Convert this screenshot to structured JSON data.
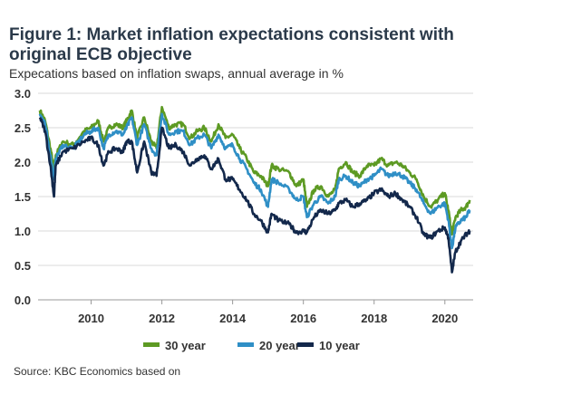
{
  "title": "Figure 1: Market inflation expectations consistent with original ECB objective",
  "subtitle": "Expecations based on inflation swaps, annual average in %",
  "source": "Source: KBC Economics based on",
  "chart_data": {
    "type": "line",
    "ylim": [
      0.0,
      3.0
    ],
    "yticks": [
      "0.0",
      "0.5",
      "1.0",
      "1.5",
      "2.0",
      "2.5",
      "3.0"
    ],
    "xlim": [
      2008.5,
      2020.8
    ],
    "xticks": [
      "2010",
      "2012",
      "2014",
      "2016",
      "2018",
      "2020"
    ],
    "grid": "horizontal",
    "legend_position": "bottom",
    "series": [
      {
        "name": "30 year",
        "color": "#5d9a23",
        "x": [
          2008.55,
          2008.7,
          2008.85,
          2008.95,
          2009.0,
          2009.2,
          2009.5,
          2009.8,
          2010.0,
          2010.2,
          2010.35,
          2010.5,
          2010.7,
          2010.9,
          2011.0,
          2011.15,
          2011.3,
          2011.5,
          2011.7,
          2011.85,
          2012.0,
          2012.2,
          2012.4,
          2012.6,
          2012.8,
          2013.0,
          2013.2,
          2013.4,
          2013.6,
          2013.8,
          2014.0,
          2014.2,
          2014.4,
          2014.6,
          2014.8,
          2015.0,
          2015.1,
          2015.3,
          2015.6,
          2015.8,
          2016.0,
          2016.1,
          2016.3,
          2016.5,
          2016.7,
          2016.9,
          2017.0,
          2017.2,
          2017.4,
          2017.6,
          2017.8,
          2018.0,
          2018.2,
          2018.4,
          2018.6,
          2018.8,
          2019.0,
          2019.2,
          2019.4,
          2019.6,
          2019.8,
          2020.0,
          2020.1,
          2020.2,
          2020.3,
          2020.45,
          2020.6,
          2020.7
        ],
        "y": [
          2.75,
          2.6,
          2.2,
          1.9,
          2.1,
          2.3,
          2.25,
          2.45,
          2.5,
          2.6,
          2.3,
          2.5,
          2.55,
          2.5,
          2.6,
          2.75,
          2.35,
          2.65,
          2.3,
          2.2,
          2.8,
          2.5,
          2.55,
          2.55,
          2.35,
          2.45,
          2.5,
          2.3,
          2.55,
          2.35,
          2.4,
          2.2,
          2.05,
          1.85,
          1.8,
          1.65,
          1.95,
          1.9,
          1.85,
          1.65,
          1.75,
          1.35,
          1.6,
          1.65,
          1.5,
          1.6,
          1.9,
          2.0,
          1.85,
          1.8,
          1.95,
          1.95,
          2.05,
          1.95,
          2.0,
          1.95,
          1.85,
          1.75,
          1.5,
          1.35,
          1.45,
          1.55,
          1.3,
          0.95,
          1.2,
          1.3,
          1.35,
          1.45
        ]
      },
      {
        "name": "20 year",
        "color": "#2f8fc6",
        "x": [
          2008.55,
          2008.7,
          2008.85,
          2008.95,
          2009.0,
          2009.2,
          2009.5,
          2009.8,
          2010.0,
          2010.2,
          2010.35,
          2010.5,
          2010.7,
          2010.9,
          2011.0,
          2011.15,
          2011.3,
          2011.5,
          2011.7,
          2011.85,
          2012.0,
          2012.2,
          2012.4,
          2012.6,
          2012.8,
          2013.0,
          2013.2,
          2013.4,
          2013.6,
          2013.8,
          2014.0,
          2014.2,
          2014.4,
          2014.6,
          2014.8,
          2015.0,
          2015.1,
          2015.3,
          2015.6,
          2015.8,
          2016.0,
          2016.1,
          2016.3,
          2016.5,
          2016.7,
          2016.9,
          2017.0,
          2017.2,
          2017.4,
          2017.6,
          2017.8,
          2018.0,
          2018.2,
          2018.4,
          2018.6,
          2018.8,
          2019.0,
          2019.2,
          2019.4,
          2019.6,
          2019.8,
          2020.0,
          2020.1,
          2020.2,
          2020.3,
          2020.45,
          2020.6,
          2020.7
        ],
        "y": [
          2.7,
          2.55,
          2.1,
          1.75,
          2.05,
          2.25,
          2.2,
          2.4,
          2.45,
          2.5,
          2.2,
          2.4,
          2.45,
          2.4,
          2.5,
          2.65,
          2.25,
          2.55,
          2.2,
          2.1,
          2.7,
          2.4,
          2.45,
          2.45,
          2.25,
          2.35,
          2.4,
          2.2,
          2.4,
          2.2,
          2.25,
          2.05,
          1.9,
          1.7,
          1.6,
          1.35,
          1.75,
          1.7,
          1.6,
          1.45,
          1.5,
          1.2,
          1.4,
          1.5,
          1.4,
          1.5,
          1.75,
          1.8,
          1.7,
          1.65,
          1.75,
          1.8,
          1.9,
          1.8,
          1.85,
          1.8,
          1.7,
          1.6,
          1.4,
          1.25,
          1.35,
          1.4,
          1.15,
          0.75,
          1.05,
          1.15,
          1.2,
          1.3
        ]
      },
      {
        "name": "10 year",
        "color": "#13284b",
        "x": [
          2008.55,
          2008.7,
          2008.85,
          2008.95,
          2009.0,
          2009.2,
          2009.5,
          2009.8,
          2010.0,
          2010.2,
          2010.35,
          2010.5,
          2010.7,
          2010.9,
          2011.0,
          2011.15,
          2011.3,
          2011.5,
          2011.7,
          2011.85,
          2012.0,
          2012.2,
          2012.4,
          2012.6,
          2012.8,
          2013.0,
          2013.2,
          2013.4,
          2013.6,
          2013.8,
          2014.0,
          2014.2,
          2014.4,
          2014.6,
          2014.8,
          2015.0,
          2015.1,
          2015.3,
          2015.6,
          2015.8,
          2016.0,
          2016.1,
          2016.3,
          2016.5,
          2016.7,
          2016.9,
          2017.0,
          2017.2,
          2017.4,
          2017.6,
          2017.8,
          2018.0,
          2018.2,
          2018.4,
          2018.6,
          2018.8,
          2019.0,
          2019.2,
          2019.4,
          2019.6,
          2019.8,
          2020.0,
          2020.1,
          2020.2,
          2020.3,
          2020.45,
          2020.6,
          2020.7
        ],
        "y": [
          2.65,
          2.45,
          1.95,
          1.5,
          1.95,
          2.15,
          2.2,
          2.3,
          2.35,
          2.25,
          1.95,
          2.15,
          2.2,
          2.15,
          2.3,
          2.3,
          1.85,
          2.3,
          1.85,
          1.8,
          2.5,
          2.2,
          2.25,
          2.15,
          1.95,
          2.05,
          2.1,
          1.9,
          2.05,
          1.75,
          1.75,
          1.6,
          1.45,
          1.25,
          1.15,
          0.98,
          1.25,
          1.15,
          1.1,
          0.98,
          1.0,
          0.98,
          1.2,
          1.3,
          1.25,
          1.3,
          1.4,
          1.45,
          1.35,
          1.4,
          1.45,
          1.55,
          1.6,
          1.5,
          1.55,
          1.45,
          1.35,
          1.2,
          0.95,
          0.9,
          1.0,
          1.05,
          0.9,
          0.4,
          0.7,
          0.85,
          0.95,
          1.0
        ]
      }
    ]
  }
}
